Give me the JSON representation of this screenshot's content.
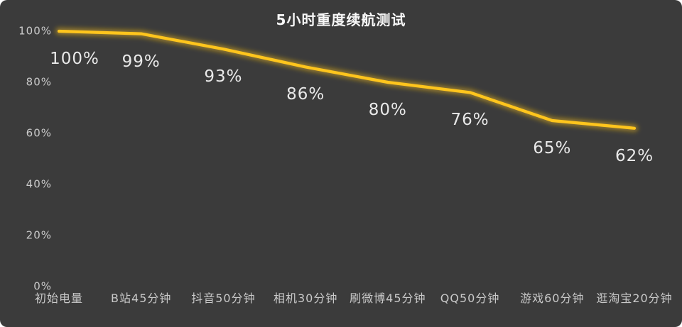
{
  "title": "5小时重度续航测试",
  "colors": {
    "background": "#3b3b3b",
    "line": "#ffc51d",
    "tick_text": "#c9c9c9",
    "data_label_text": "#e9e9e9",
    "title_text": "#f7f7f7"
  },
  "chart_data": {
    "type": "line",
    "title": "5小时重度续航测试",
    "categories": [
      "初始电量",
      "B站45分钟",
      "抖音50分钟",
      "相机30分钟",
      "刷微博45分钟",
      "QQ50分钟",
      "游戏60分钟",
      "逛淘宝20分钟"
    ],
    "values": [
      100,
      99,
      93,
      86,
      80,
      76,
      65,
      62
    ],
    "point_labels": [
      "100%",
      "99%",
      "93%",
      "86%",
      "80%",
      "76%",
      "65%",
      "62%"
    ],
    "yticks": [
      "100%",
      "80%",
      "60%",
      "40%",
      "20%",
      "0%"
    ],
    "ylim": [
      0,
      100
    ],
    "xlabel": "",
    "ylabel": "",
    "grid": false,
    "legend": false,
    "line_color": "#ffc51d",
    "background_color": "#3b3b3b"
  }
}
